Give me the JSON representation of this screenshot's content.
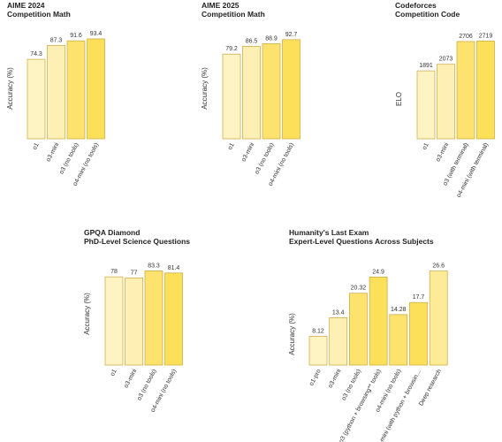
{
  "chart_data": [
    {
      "type": "bar",
      "title": "AIME 2024",
      "subtitle": "Competition Math",
      "ylabel": "Accuracy (%)",
      "categories": [
        "o1",
        "o3-mini",
        "o3 (no tools)",
        "o4-mini (no tools)"
      ],
      "values": [
        74.3,
        87.3,
        91.6,
        93.4
      ],
      "colors": [
        "#fef3c2",
        "#fef0b4",
        "#fde36e",
        "#fde05a"
      ],
      "ylim": [
        0,
        100
      ]
    },
    {
      "type": "bar",
      "title": "AIME 2025",
      "subtitle": "Competition Math",
      "ylabel": "Accuracy (%)",
      "categories": [
        "o1",
        "o3-mini",
        "o3 (no tools)",
        "o4-mini (no tools)"
      ],
      "values": [
        79.2,
        86.5,
        88.9,
        92.7
      ],
      "colors": [
        "#fef3c2",
        "#fef0b4",
        "#fde36e",
        "#fde05a"
      ],
      "ylim": [
        0,
        100
      ]
    },
    {
      "type": "bar",
      "title": "Codeforces",
      "subtitle": "Competition Code",
      "ylabel": "ELO",
      "categories": [
        "o1",
        "o3-mini",
        "o3 (with terminal)",
        "o4-mini (with terminal)"
      ],
      "values": [
        1891,
        2073,
        2706,
        2719
      ],
      "colors": [
        "#fef3c2",
        "#fef0b4",
        "#fde36e",
        "#fde05a"
      ],
      "ylim": [
        0,
        3000
      ]
    },
    {
      "type": "bar",
      "title": "GPQA Diamond",
      "subtitle": "PhD-Level Science Questions",
      "ylabel": "Accuracy (%)",
      "categories": [
        "o1",
        "o3-mini",
        "o3 (no tools)",
        "o4-mini (no tools)"
      ],
      "values": [
        78,
        77,
        83.3,
        81.4
      ],
      "colors": [
        "#fef3c2",
        "#fef0b4",
        "#fde36e",
        "#fde05a"
      ],
      "ylim": [
        0,
        100
      ]
    },
    {
      "type": "bar",
      "title": "Humanity's Last Exam",
      "subtitle": "Expert-Level Questions Across Subjects",
      "ylabel": "Accuracy (%)",
      "categories": [
        "o1-pro",
        "o3-mini",
        "o3 (no tools)",
        "o3 (python + browsing** tools)",
        "o4-mini (no tools)",
        "o4-mini (with python + browsin…",
        "Deep research"
      ],
      "values": [
        8.12,
        13.4,
        20.32,
        24.9,
        14.28,
        17.7,
        26.6
      ],
      "colors": [
        "#fef3c2",
        "#fef0b4",
        "#fde36e",
        "#fde05a",
        "#fde36e",
        "#fde05a",
        "#fdeb97"
      ],
      "ylim": [
        0,
        30
      ]
    }
  ]
}
